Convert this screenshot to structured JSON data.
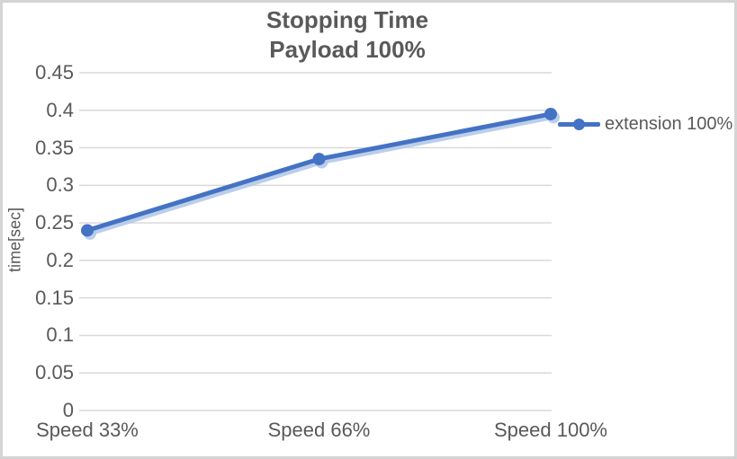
{
  "window": {
    "background": "#ffffff",
    "border_color": "#d4d4d4"
  },
  "chart_data": {
    "type": "line",
    "title": "Stopping Time",
    "subtitle": "Payload 100%",
    "categories": [
      "Speed 33%",
      "Speed 66%",
      "Speed 100%"
    ],
    "series": [
      {
        "name": "extension 100%",
        "values": [
          0.24,
          0.335,
          0.395
        ],
        "color": "#4472C4",
        "marker": "circle"
      }
    ],
    "series_shadow_color": "#b4c9e8",
    "xlabel": "",
    "ylabel": "time[sec]",
    "ylim": [
      0,
      0.45
    ],
    "ytick_step": 0.05,
    "ytick_labels": [
      "0",
      "0.05",
      "0.1",
      "0.15",
      "0.2",
      "0.25",
      "0.3",
      "0.35",
      "0.4",
      "0.45"
    ],
    "grid": true,
    "gridline_color": "#d9d9d9",
    "legend_position": "right",
    "text_color": "#595959"
  }
}
